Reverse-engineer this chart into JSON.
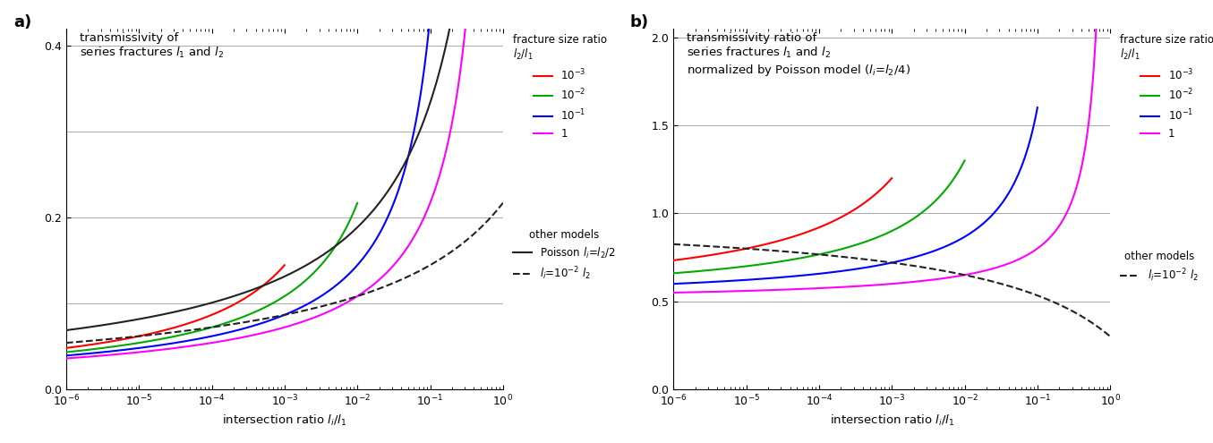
{
  "ratios": [
    0.001,
    0.01,
    0.1,
    1.0
  ],
  "ratio_labels": [
    "10$^{-3}$",
    "10$^{-2}$",
    "10$^{-1}$",
    "1"
  ],
  "colors": [
    "#ff0000",
    "#00aa00",
    "#0000ff",
    "#ff00ff"
  ],
  "poisson_color": "#222222",
  "dashed_color": "#222222",
  "grid_color": "#aaaaaa",
  "background": "#ffffff",
  "panel_a_title": "transmissivity of\nseries fractures $l_1$ and $l_2$",
  "panel_b_title": "transmissivity ratio of\nseries fractures $l_1$ and $l_2$\nnormalized by Poisson model ($l_i$=$l_2$/4)",
  "xlabel": "intersection ratio $l_i$/$l_1$",
  "legend_title_frac": "fracture size ratio\n$l_2$/$l_1$",
  "legend_title_other": "other models",
  "poisson_legend": "Poisson $l_i$=$l_2$/2",
  "dashed_legend": "$l_i$=10$^{-2}$ $l_2$",
  "label_a": "a)",
  "label_b": "b)",
  "ylim_a": [
    0.0,
    0.42
  ],
  "yticks_a": [
    0.0,
    0.2,
    0.4
  ],
  "hgrid_a": [
    0.1,
    0.2,
    0.3,
    0.4
  ],
  "ylim_b": [
    0.0,
    2.05
  ],
  "yticks_b": [
    0.0,
    0.5,
    1.0,
    1.5,
    2.0
  ],
  "hgrid_b": [
    0.5,
    1.0,
    1.5,
    2.0
  ]
}
